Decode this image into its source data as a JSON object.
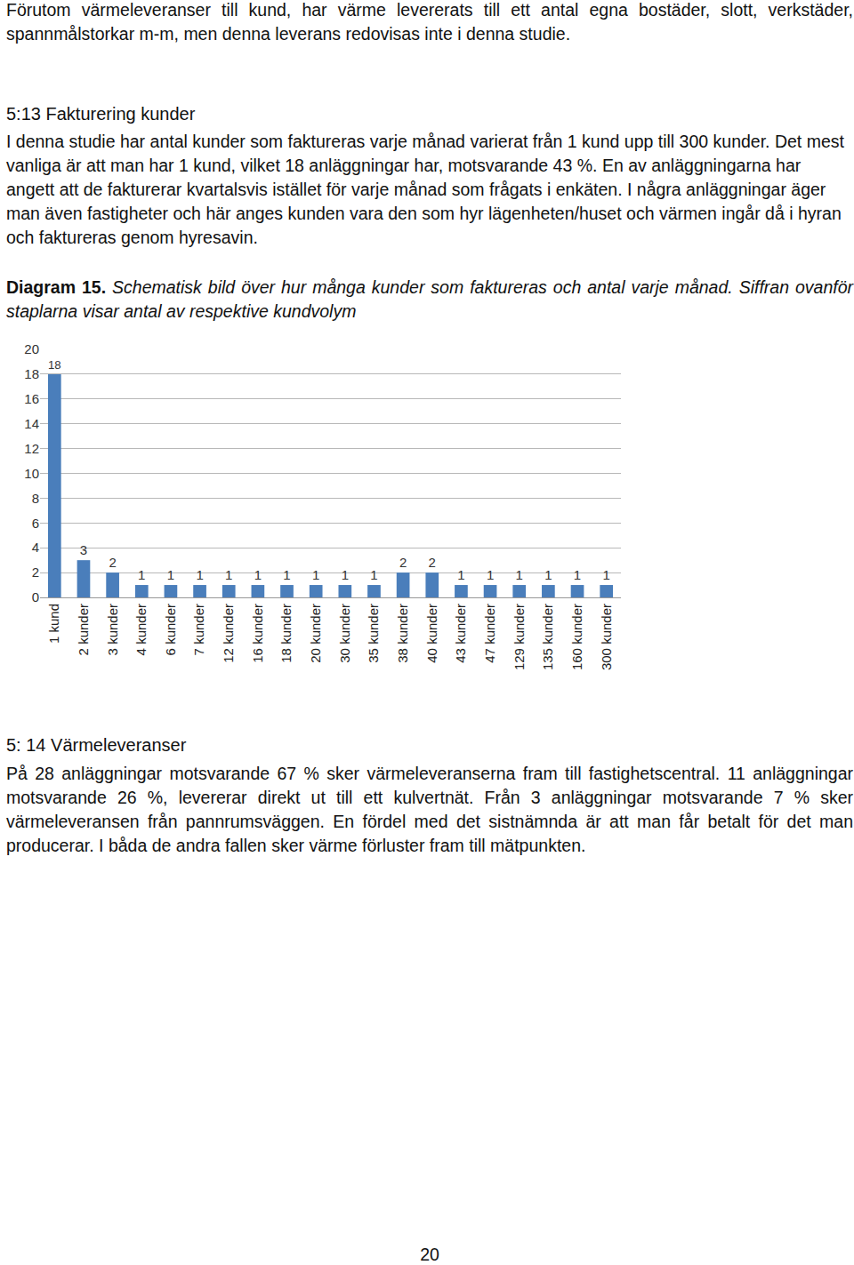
{
  "intro": "Förutom värmeleveranser till kund, har värme levererats till ett antal egna bostäder, slott, verkstäder, spannmålstorkar m-m, men denna leverans redovisas inte i denna studie.",
  "section_1": {
    "heading": "5:13 Fakturering kunder",
    "text": "I denna studie har antal kunder som faktureras varje månad varierat från 1 kund upp till 300 kunder. Det mest vanliga är att man har 1 kund, vilket 18 anläggningar har, motsvarande 43 %. En av anläggningarna har angett att de fakturerar kvartalsvis istället för varje månad som frågats i enkäten. I några anläggningar äger man även fastigheter och här anges kunden vara den som hyr lägenheten/huset och värmen ingår då i hyran och faktureras genom hyresavin."
  },
  "caption": {
    "label": "Diagram 15.",
    "text": "Schematisk bild över hur många kunder som faktureras och antal varje månad. Siffran ovanför staplarna visar antal av respektive kundvolym"
  },
  "chart_data": {
    "type": "bar",
    "categories": [
      "1 kund",
      "2 kunder",
      "3 kunder",
      "4 kunder",
      "6 kunder",
      "7 kunder",
      "12 kunder",
      "16 kunder",
      "18 kunder",
      "20 kunder",
      "30 kunder",
      "35 kunder",
      "38 kunder",
      "40 kunder",
      "43 kunder",
      "47 kunder",
      "129 kunder",
      "135 kunder",
      "160 kunder",
      "300 kunder"
    ],
    "values": [
      18,
      3,
      2,
      1,
      1,
      1,
      1,
      1,
      1,
      1,
      1,
      1,
      2,
      2,
      1,
      1,
      1,
      1,
      1,
      1
    ],
    "color": "#4a7ebb",
    "ylim": [
      0,
      20
    ],
    "yticks": [
      0,
      2,
      4,
      6,
      8,
      10,
      12,
      14,
      16,
      18,
      20
    ],
    "grid": true,
    "data_labels": true
  },
  "section_2": {
    "heading": "5: 14 Värmeleveranser",
    "text": "På 28 anläggningar motsvarande 67 % sker värmeleveranserna fram till fastighetscentral. 11 anläggningar motsvarande 26 %, levererar direkt ut till ett kulvertnät. Från 3 anläggningar motsvarande 7 % sker värmeleveransen från pannrumsväggen. En fördel med det sistnämnda är att man får betalt för det man producerar. I båda de andra fallen sker värme förluster fram till mätpunkten."
  },
  "page_number": 20
}
